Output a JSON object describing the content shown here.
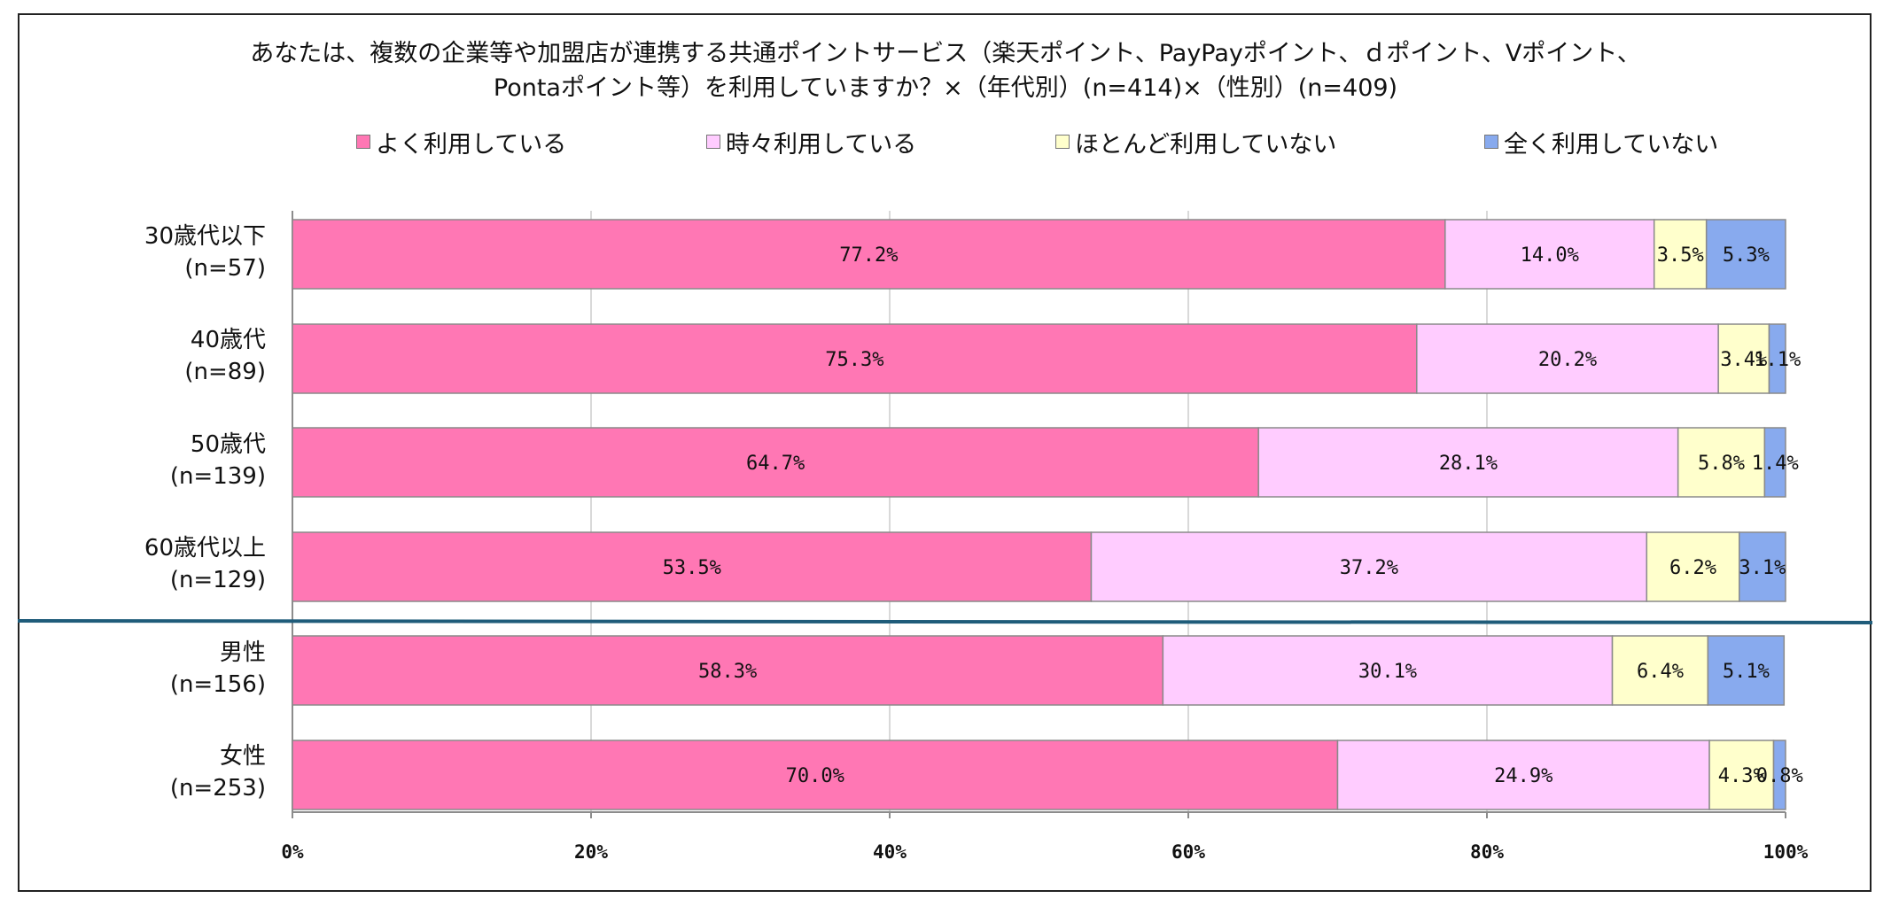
{
  "chart_data": {
    "type": "bar",
    "orientation": "horizontal",
    "stacked": "100%",
    "title_line1": "あなたは、複数の企業等や加盟店が連携する共通ポイントサービス（楽天ポイント、PayPayポイント、ｄポイント、Vポイント、",
    "title_line2": "Pontaポイント等）を利用していますか？×（年代別）(n=414)×（性別）(n=409)",
    "legend_position": "top",
    "series": [
      {
        "name": "よく利用している",
        "color": "#ff77b4",
        "values": [
          77.2,
          75.3,
          64.7,
          53.5,
          58.3,
          70.0
        ]
      },
      {
        "name": "時々利用している",
        "color": "#ffccff",
        "values": [
          14.0,
          20.2,
          28.1,
          37.2,
          30.1,
          24.9
        ]
      },
      {
        "name": "ほとんど利用していない",
        "color": "#ffffcc",
        "values": [
          3.5,
          3.4,
          5.8,
          6.2,
          6.4,
          4.3
        ]
      },
      {
        "name": "全く利用していない",
        "color": "#88aaee",
        "values": [
          5.3,
          1.1,
          1.4,
          3.1,
          5.1,
          0.8
        ]
      }
    ],
    "data_labels": [
      [
        "77.2%",
        "14.0%",
        "3.5%",
        "5.3%"
      ],
      [
        "75.3%",
        "20.2%",
        "3.4%",
        "1.1%"
      ],
      [
        "64.7%",
        "28.1%",
        "5.8%",
        "1.4%"
      ],
      [
        "53.5%",
        "37.2%",
        "6.2%",
        "3.1%"
      ],
      [
        "58.3%",
        "30.1%",
        "6.4%",
        "5.1%"
      ],
      [
        "70.0%",
        "24.9%",
        "4.3%",
        "0.8%"
      ]
    ],
    "categories": [
      {
        "name": "30歳代以下",
        "n": "(n=57)"
      },
      {
        "name": "40歳代",
        "n": "(n=89)"
      },
      {
        "name": "50歳代",
        "n": "(n=139)"
      },
      {
        "name": "60歳代以上",
        "n": "(n=129)"
      },
      {
        "name": "男性",
        "n": "(n=156)"
      },
      {
        "name": "女性",
        "n": "(n=253)"
      }
    ],
    "x_ticks": [
      "0%",
      "20%",
      "40%",
      "60%",
      "80%",
      "100%"
    ],
    "xlim": [
      0,
      100
    ],
    "gridlines": true,
    "divider_color": "#1f5c7a"
  }
}
